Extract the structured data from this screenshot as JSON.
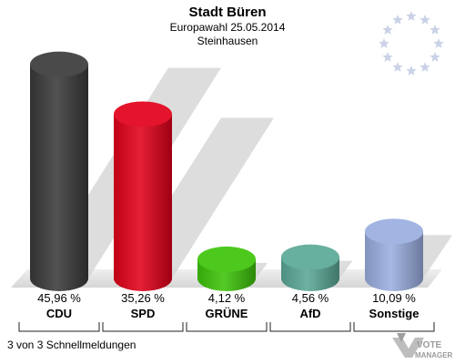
{
  "header": {
    "title": "Stadt Büren",
    "subtitle": "Europawahl 25.05.2014",
    "district": "Steinhausen"
  },
  "footer": {
    "status": "3 von 3 Schnellmeldungen",
    "brand_line1": "VOTE",
    "brand_line2": "MANAGER"
  },
  "chart_data": {
    "type": "bar",
    "categories": [
      "CDU",
      "SPD",
      "GRÜNE",
      "AfD",
      "Sonstige"
    ],
    "values": [
      45.96,
      35.26,
      4.12,
      4.56,
      10.09
    ],
    "value_labels": [
      "45,96 %",
      "35,26 %",
      "4,12 %",
      "4,56 %",
      "10,09 %"
    ],
    "colors": [
      "#3a3a3a",
      "#e2001a",
      "#3ec40a",
      "#5aa896",
      "#9aaee0"
    ],
    "ylim": [
      0,
      50
    ],
    "grid": false,
    "legend": "none"
  },
  "decor": {
    "star_color": "#c9d2e6",
    "floor_color": "#dcdcdc"
  }
}
